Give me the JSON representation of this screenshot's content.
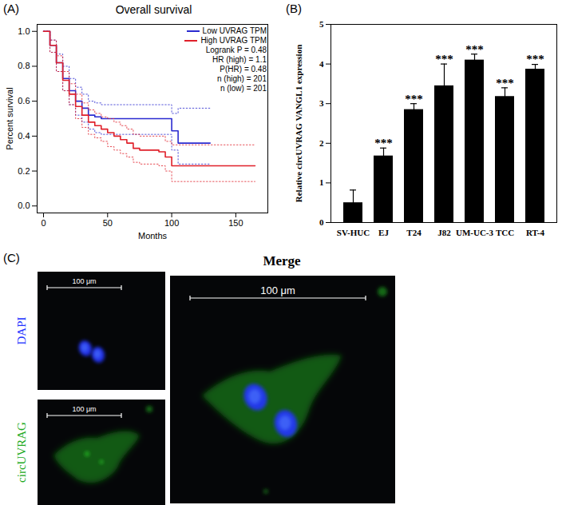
{
  "chart_data": [
    {
      "panel": "(A)",
      "type": "line",
      "title": "Overall survival",
      "x_label": "Months",
      "y_label": "Percent survival",
      "x": [
        0,
        5,
        10,
        15,
        20,
        25,
        30,
        35,
        40,
        45,
        50,
        55,
        60,
        65,
        70,
        75,
        80,
        85,
        90,
        95,
        100,
        105,
        110,
        115,
        120,
        125,
        130,
        135,
        140,
        145,
        150,
        155,
        160,
        165,
        170
      ],
      "series": [
        {
          "name": "Low UVRAG TPM",
          "color": "#2b2bd0",
          "line_style": "solid",
          "values": [
            1.0,
            0.92,
            0.82,
            0.73,
            0.66,
            0.6,
            0.56,
            0.52,
            0.51,
            0.5,
            0.5,
            0.5,
            0.5,
            0.5,
            0.5,
            0.5,
            0.5,
            0.5,
            0.5,
            0.5,
            0.43,
            0.36,
            0.36,
            0.36,
            0.36,
            0.36,
            0.36,
            null,
            null,
            null,
            null,
            null,
            null,
            null,
            null
          ],
          "ci_lower": [
            1.0,
            0.88,
            0.77,
            0.66,
            0.58,
            0.52,
            0.48,
            0.44,
            0.42,
            0.41,
            0.41,
            0.41,
            0.41,
            0.41,
            0.41,
            0.41,
            0.41,
            0.41,
            0.41,
            0.41,
            0.32,
            0.24,
            0.24,
            0.24,
            0.24,
            0.24,
            0.24,
            null,
            null,
            null,
            null,
            null,
            null,
            null,
            null
          ],
          "ci_upper": [
            1.0,
            0.95,
            0.87,
            0.8,
            0.73,
            0.68,
            0.64,
            0.6,
            0.59,
            0.58,
            0.58,
            0.58,
            0.58,
            0.58,
            0.58,
            0.58,
            0.58,
            0.58,
            0.58,
            0.58,
            0.53,
            0.56,
            0.56,
            0.56,
            0.56,
            0.56,
            0.56,
            null,
            null,
            null,
            null,
            null,
            null,
            null,
            null
          ]
        },
        {
          "name": "High UVRAG TPM",
          "color": "#e0202a",
          "line_style": "solid",
          "values": [
            1.0,
            0.92,
            0.82,
            0.72,
            0.64,
            0.57,
            0.52,
            0.48,
            0.46,
            0.44,
            0.42,
            0.4,
            0.38,
            0.36,
            0.33,
            0.32,
            0.32,
            0.32,
            0.31,
            0.28,
            0.23,
            0.23,
            0.23,
            0.23,
            0.23,
            0.23,
            0.23,
            0.23,
            0.23,
            0.23,
            0.23,
            0.23,
            0.23,
            0.23,
            null
          ],
          "ci_lower": [
            1.0,
            0.88,
            0.77,
            0.66,
            0.58,
            0.5,
            0.45,
            0.41,
            0.39,
            0.37,
            0.34,
            0.32,
            0.3,
            0.28,
            0.25,
            0.24,
            0.24,
            0.24,
            0.23,
            0.2,
            0.14,
            0.14,
            0.14,
            0.14,
            0.14,
            0.14,
            0.14,
            0.14,
            0.14,
            0.14,
            0.14,
            0.14,
            0.14,
            0.14,
            null
          ],
          "ci_upper": [
            1.0,
            0.95,
            0.86,
            0.77,
            0.7,
            0.64,
            0.59,
            0.55,
            0.53,
            0.51,
            0.5,
            0.48,
            0.46,
            0.44,
            0.41,
            0.4,
            0.4,
            0.4,
            0.4,
            0.37,
            0.35,
            0.35,
            0.35,
            0.35,
            0.35,
            0.35,
            0.35,
            0.35,
            0.35,
            0.35,
            0.35,
            0.35,
            0.35,
            0.35,
            null
          ]
        }
      ],
      "xlim": [
        -5,
        175
      ],
      "xticks": [
        0,
        50,
        100,
        150
      ],
      "ylim": [
        -0.04,
        1.04
      ],
      "yticks": [
        {
          "value": 0,
          "label": "0.0"
        },
        0.2,
        0.4,
        0.6,
        0.8,
        {
          "value": 1,
          "label": "1.0"
        }
      ],
      "legend": "top-right",
      "annotations": [
        "Logrank P = 0.48",
        "HR (high) = 1.1",
        "P(HR) = 0.48",
        "n (high) = 201",
        "n (low) = 201"
      ]
    },
    {
      "panel": "(B)",
      "type": "bar",
      "y_label": "Relative circUVRAG VANGL1 expression",
      "categories": [
        "SV-HUC",
        "EJ",
        "T24",
        "J82",
        "UM-UC-3",
        "TCC",
        "RT-4"
      ],
      "values": [
        0.5,
        1.68,
        2.85,
        3.45,
        4.1,
        3.18,
        3.87
      ],
      "errors": [
        0.32,
        0.2,
        0.15,
        0.55,
        0.15,
        0.22,
        0.12
      ],
      "significance": [
        null,
        "***",
        "***",
        "***",
        "***",
        "***",
        "***"
      ],
      "color": "#000000",
      "ylim": [
        0,
        5
      ],
      "yticks": [
        0,
        1,
        2,
        3,
        4,
        5
      ]
    }
  ],
  "image_panel": {
    "panel": "(C)",
    "title": "Merge",
    "channels": [
      {
        "name": "DAPI",
        "color": "#2233ff"
      },
      {
        "name": "circUVRAG",
        "color": "#22aa22"
      }
    ],
    "scale_bar": "100 μm"
  }
}
